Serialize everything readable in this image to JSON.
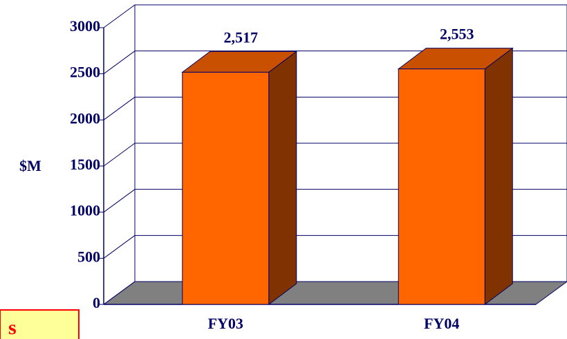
{
  "chart_data": {
    "type": "bar3d",
    "y_label": "$M",
    "categories": [
      "FY03",
      "FY04"
    ],
    "values": [
      2517,
      2553
    ],
    "value_labels": [
      "2,517",
      "2,553"
    ],
    "color": "#ff6600",
    "ylim": [
      0,
      3000
    ],
    "yticks": [
      0,
      500,
      1000,
      1500,
      2000,
      2500,
      3000
    ],
    "grid": true
  },
  "callout": {
    "text": "s"
  }
}
